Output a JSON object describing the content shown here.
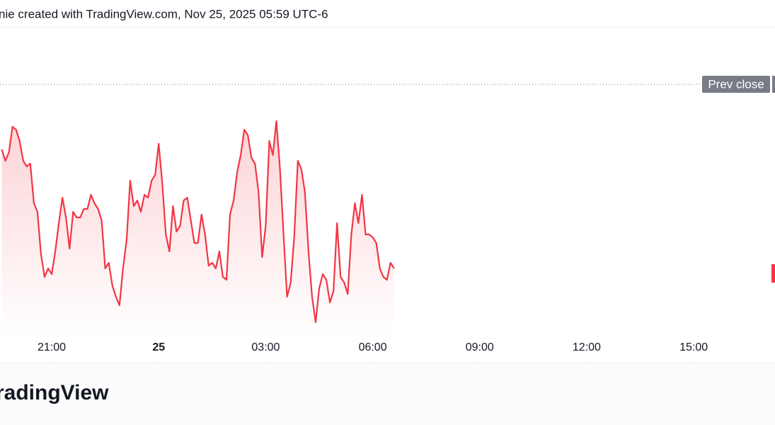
{
  "header": {
    "text": "nie created with TradingView.com, Nov 25, 2025 05:59 UTC-6"
  },
  "chart_data": {
    "type": "line",
    "x": [
      19.6,
      19.7,
      19.8,
      19.9,
      20,
      20.1,
      20.2,
      20.3,
      20.4,
      20.5,
      20.6,
      20.7,
      20.8,
      20.9,
      21,
      21.1,
      21.2,
      21.3,
      21.4,
      21.5,
      21.6,
      21.7,
      21.8,
      21.9,
      22,
      22.1,
      22.2,
      22.3,
      22.4,
      22.5,
      22.6,
      22.7,
      22.8,
      22.9,
      23,
      23.1,
      23.2,
      23.3,
      23.4,
      23.5,
      23.6,
      23.7,
      23.8,
      23.9,
      24,
      24.1,
      24.2,
      24.3,
      24.4,
      24.5,
      24.6,
      24.7,
      24.8,
      24.9,
      25,
      25.1,
      25.2,
      25.3,
      25.4,
      25.5,
      25.6,
      25.7,
      25.8,
      25.9,
      26,
      26.1,
      26.2,
      26.3,
      26.4,
      26.5,
      26.6,
      26.7,
      26.8,
      26.9,
      27,
      27.1,
      27.2,
      27.3,
      27.4,
      27.5,
      27.6,
      27.7,
      27.8,
      27.9,
      28,
      28.1,
      28.2,
      28.3,
      28.4,
      28.5,
      28.6,
      28.7,
      28.8,
      28.9,
      29,
      29.1,
      29.2,
      29.3,
      29.4,
      29.5,
      29.6,
      29.7,
      29.8,
      29.9,
      30,
      30.1,
      30.2,
      30.3,
      30.4,
      30.5,
      30.6
    ],
    "series": [
      {
        "color": "#f23645",
        "values": [
          66,
          62,
          65,
          74,
          73,
          69,
          62,
          60,
          61,
          47,
          44,
          29,
          21,
          24,
          22,
          30,
          40,
          49,
          42,
          31,
          44,
          42,
          42,
          45,
          45,
          50,
          47,
          45,
          41,
          24,
          26,
          18,
          14,
          11,
          24,
          34,
          55,
          46,
          48,
          44,
          50,
          49,
          55,
          57,
          68,
          54,
          36,
          30,
          46,
          37,
          39,
          48,
          49,
          41,
          33,
          33,
          43,
          36,
          25,
          26,
          24,
          30,
          21,
          20,
          43,
          48,
          58,
          64,
          73,
          71,
          63,
          61,
          51,
          28,
          39,
          69,
          64,
          76,
          59,
          36,
          14,
          19,
          35,
          62,
          59,
          51,
          30,
          14,
          5,
          17,
          22,
          20,
          12,
          16,
          40,
          21,
          19,
          15,
          36,
          47,
          40,
          50,
          36,
          36,
          35,
          33,
          24,
          21,
          20,
          26,
          24
        ]
      }
    ],
    "xlim": [
      19.55,
      41.28
    ],
    "xticks": [
      {
        "value": 21,
        "label": "21:00"
      },
      {
        "value": 24,
        "label": "25"
      },
      {
        "value": 27,
        "label": "03:00"
      },
      {
        "value": 30,
        "label": "06:00"
      },
      {
        "value": 33,
        "label": "09:00"
      },
      {
        "value": 36,
        "label": "12:00"
      },
      {
        "value": 39,
        "label": "15:00"
      }
    ],
    "ylim": [
      0,
      100
    ],
    "prev_close": {
      "label": "Prev close",
      "value": 89
    }
  },
  "footer": {
    "logo": "radingView"
  }
}
